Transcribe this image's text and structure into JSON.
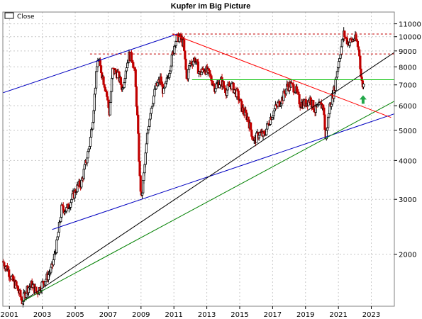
{
  "chart_data": {
    "type": "candlestick",
    "title": "Kupfer im Big Picture",
    "legend": {
      "label": "Close",
      "placement": "top-left"
    },
    "y_scale": "log",
    "ylim": [
      1360,
      12000
    ],
    "xlim": [
      2000.6,
      2024.4
    ],
    "y_ticks": [
      2000,
      3000,
      4000,
      5000,
      6000,
      7000,
      8000,
      9000,
      10000,
      11000
    ],
    "y_tick_labels": [
      "2000",
      "3000",
      "4000",
      "5000",
      "6000",
      "7000",
      "8000",
      "9000",
      "10000",
      "11000"
    ],
    "x_ticks": [
      2001,
      2003,
      2005,
      2007,
      2009,
      2011,
      2013,
      2015,
      2017,
      2019,
      2021,
      2023
    ],
    "x_tick_labels": [
      "2001",
      "2003",
      "2005",
      "2007",
      "2009",
      "2011",
      "2013",
      "2015",
      "2017",
      "2019",
      "2021",
      "2023"
    ],
    "grid": true,
    "colors": {
      "up": "#000000",
      "down": "#c00000",
      "frame": "#808080",
      "grid": "#c8c8c8",
      "blue": "#0000c0",
      "black": "#000000",
      "green": "#008000",
      "red": "#ff0000",
      "light_green": "#00c000",
      "dashed_red": "#c00000",
      "arrow": "#22a84a"
    },
    "price_path": [
      [
        2000.6,
        1900
      ],
      [
        2000.9,
        1800
      ],
      [
        2001.2,
        1650
      ],
      [
        2001.5,
        1560
      ],
      [
        2001.8,
        1410
      ],
      [
        2002.1,
        1550
      ],
      [
        2002.4,
        1600
      ],
      [
        2002.7,
        1500
      ],
      [
        2003.0,
        1600
      ],
      [
        2003.3,
        1680
      ],
      [
        2003.6,
        1800
      ],
      [
        2003.9,
        2150
      ],
      [
        2004.2,
        2800
      ],
      [
        2004.5,
        2780
      ],
      [
        2004.8,
        3000
      ],
      [
        2005.1,
        3250
      ],
      [
        2005.4,
        3400
      ],
      [
        2005.7,
        4000
      ],
      [
        2005.9,
        4500
      ],
      [
        2006.1,
        5500
      ],
      [
        2006.25,
        7000
      ],
      [
        2006.4,
        8500
      ],
      [
        2006.6,
        7800
      ],
      [
        2006.9,
        6700
      ],
      [
        2007.1,
        5700
      ],
      [
        2007.3,
        7800
      ],
      [
        2007.6,
        7600
      ],
      [
        2007.9,
        6800
      ],
      [
        2008.1,
        7900
      ],
      [
        2008.3,
        8700
      ],
      [
        2008.5,
        8500
      ],
      [
        2008.65,
        7600
      ],
      [
        2008.8,
        5500
      ],
      [
        2008.95,
        3500
      ],
      [
        2009.05,
        3000
      ],
      [
        2009.2,
        3600
      ],
      [
        2009.4,
        4800
      ],
      [
        2009.6,
        5800
      ],
      [
        2009.9,
        6800
      ],
      [
        2010.2,
        7300
      ],
      [
        2010.4,
        6600
      ],
      [
        2010.6,
        7200
      ],
      [
        2010.9,
        8500
      ],
      [
        2011.1,
        9700
      ],
      [
        2011.35,
        10000
      ],
      [
        2011.6,
        9500
      ],
      [
        2011.8,
        7300
      ],
      [
        2012.0,
        8200
      ],
      [
        2012.3,
        8500
      ],
      [
        2012.6,
        7600
      ],
      [
        2012.9,
        7900
      ],
      [
        2013.2,
        7500
      ],
      [
        2013.5,
        6900
      ],
      [
        2013.9,
        7200
      ],
      [
        2014.2,
        6700
      ],
      [
        2014.5,
        7000
      ],
      [
        2014.9,
        6500
      ],
      [
        2015.2,
        5800
      ],
      [
        2015.5,
        5500
      ],
      [
        2015.9,
        4600
      ],
      [
        2016.2,
        4900
      ],
      [
        2016.5,
        4800
      ],
      [
        2016.9,
        5500
      ],
      [
        2017.2,
        5900
      ],
      [
        2017.6,
        6300
      ],
      [
        2017.9,
        6900
      ],
      [
        2018.1,
        7000
      ],
      [
        2018.4,
        6800
      ],
      [
        2018.7,
        6100
      ],
      [
        2019.0,
        6100
      ],
      [
        2019.3,
        6300
      ],
      [
        2019.6,
        5800
      ],
      [
        2019.9,
        6000
      ],
      [
        2020.1,
        6000
      ],
      [
        2020.25,
        4700
      ],
      [
        2020.5,
        6000
      ],
      [
        2020.75,
        6700
      ],
      [
        2020.95,
        7800
      ],
      [
        2021.15,
        9000
      ],
      [
        2021.35,
        10200
      ],
      [
        2021.6,
        9600
      ],
      [
        2021.85,
        9700
      ],
      [
        2022.0,
        9900
      ],
      [
        2022.15,
        9600
      ],
      [
        2022.3,
        8800
      ],
      [
        2022.42,
        7200
      ],
      [
        2022.5,
        7000
      ]
    ],
    "lines": [
      {
        "name": "upper-blue-trendline",
        "color": "blue",
        "dash": false,
        "points": [
          [
            2000.6,
            6600
          ],
          [
            2011.2,
            10200
          ]
        ]
      },
      {
        "name": "lower-blue-trendline",
        "color": "blue",
        "dash": false,
        "points": [
          [
            2003.6,
            2400
          ],
          [
            2024.4,
            5650
          ]
        ]
      },
      {
        "name": "black-uptrend-line",
        "color": "black",
        "dash": false,
        "points": [
          [
            2001.8,
            1410
          ],
          [
            2024.4,
            8900
          ]
        ]
      },
      {
        "name": "green-uptrend-line",
        "color": "green",
        "dash": false,
        "points": [
          [
            2001.8,
            1410
          ],
          [
            2024.4,
            6200
          ]
        ]
      },
      {
        "name": "red-downtrend-line",
        "color": "red",
        "dash": false,
        "points": [
          [
            2010.9,
            10200
          ],
          [
            2024.2,
            5500
          ]
        ]
      },
      {
        "name": "green-horizontal-support",
        "color": "light_green",
        "dash": false,
        "points": [
          [
            2012.1,
            7270
          ],
          [
            2024.4,
            7270
          ]
        ]
      },
      {
        "name": "dashed-resistance-high",
        "color": "dashed_red",
        "dash": true,
        "points": [
          [
            2010.9,
            10200
          ],
          [
            2024.4,
            10200
          ]
        ]
      },
      {
        "name": "dashed-resistance-mid",
        "color": "dashed_red",
        "dash": true,
        "points": [
          [
            2005.9,
            8800
          ],
          [
            2024.4,
            8800
          ]
        ]
      }
    ],
    "annotation": {
      "type": "arrow-up",
      "x": 2022.5,
      "y": 6250,
      "color": "arrow"
    }
  }
}
